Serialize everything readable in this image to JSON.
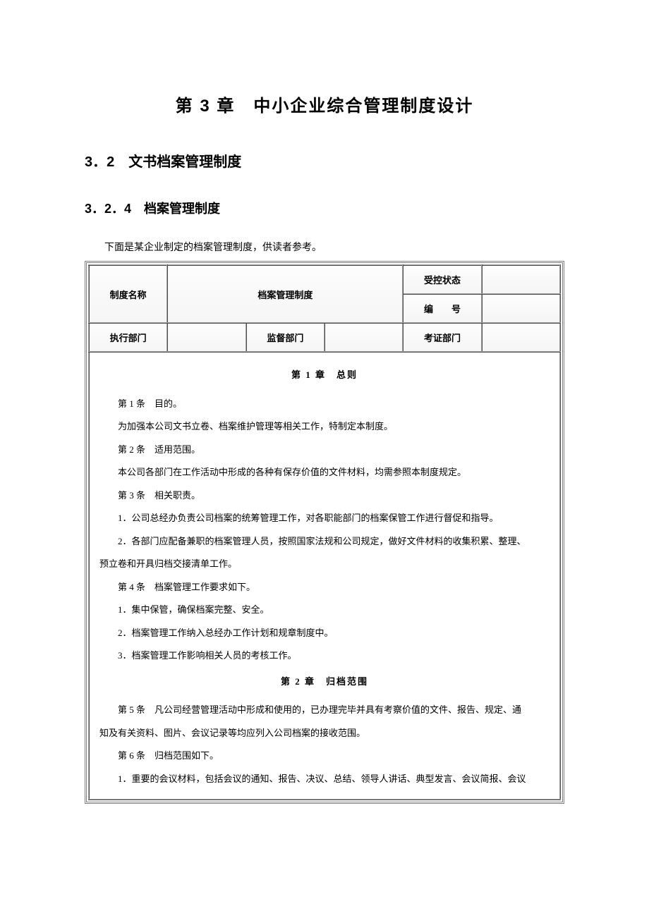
{
  "chapter_title": "第 3 章　中小企业综合管理制度设计",
  "section_title": "3．2　文书档案管理制度",
  "subsection_title": "3．2．4　档案管理制度",
  "intro": "下面是某企业制定的档案管理制度，供读者参考。",
  "header": {
    "system_name_label": "制度名称",
    "system_name_value": "档案管理制度",
    "status_label": "受控状态",
    "status_value": "",
    "number_label": "编　　号",
    "number_value": "",
    "exec_dept_label": "执行部门",
    "exec_dept_value": "",
    "supervise_dept_label": "监督部门",
    "supervise_dept_value": "",
    "verify_dept_label": "考证部门",
    "verify_dept_value": ""
  },
  "content": {
    "ch1_title": "第 1 章　总则",
    "p1": "第 1 条　目的。",
    "p2": "为加强本公司文书立卷、档案维护管理等相关工作，特制定本制度。",
    "p3": "第 2 条　适用范围。",
    "p4": "本公司各部门在工作活动中形成的各种有保存价值的文件材料，均需参照本制度规定。",
    "p5": "第 3 条　相关职责。",
    "p6": "1．公司总经办负责公司档案的统筹管理工作，对各职能部门的档案保管工作进行督促和指导。",
    "p7a": "2．各部门应配备兼职的档案管理人员，按照国家法规和公司规定，做好文件材料的收集积累、整理、",
    "p7b": "预立卷和开具归档交接清单工作。",
    "p8": "第 4 条　档案管理工作要求如下。",
    "p9": "1．集中保管，确保档案完整、安全。",
    "p10": "2．档案管理工作纳入总经办工作计划和规章制度中。",
    "p11": "3．档案管理工作影响相关人员的考核工作。",
    "ch2_title": "第 2 章　归档范围",
    "p12a": "第 5 条　凡公司经营管理活动中形成和使用的，已办理完毕并具有考察价值的文件、报告、规定、通",
    "p12b": "知及有关资料、图片、会议记录等均应列入公司档案的接收范围。",
    "p13": "第 6 条　归档范围如下。",
    "p14": "1．重要的会议材料，包括会议的通知、报告、决议、总结、领导人讲话、典型发言、会议简报、会议"
  },
  "styles": {
    "page_bg": "#ffffff",
    "text_color": "#000000",
    "border_color": "#808080",
    "cell_border": "#a0a0a0",
    "title_fontsize": 24,
    "section_fontsize": 20,
    "subsection_fontsize": 18,
    "body_fontsize": 13,
    "line_height": 2.5
  }
}
